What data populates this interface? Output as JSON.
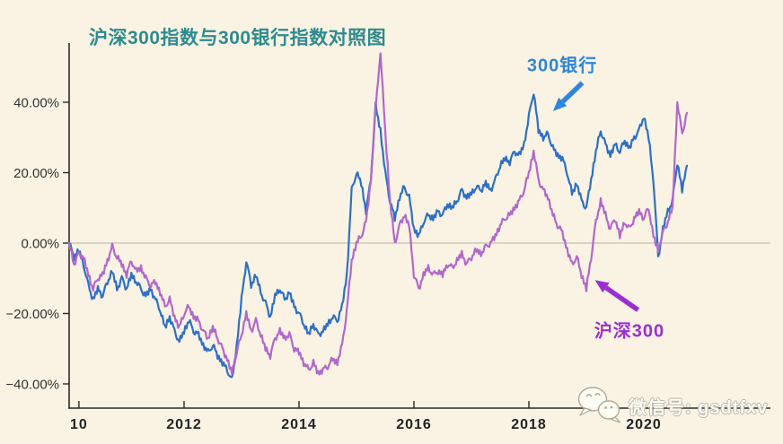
{
  "page": {
    "background": "#faf3e3"
  },
  "chart": {
    "title": "沪深300指数与300银行指数对照图",
    "title_color": "#2e8b8e",
    "annotations": [
      {
        "text": "300银行",
        "color": "#2f86dc",
        "tip": {
          "year": 2018.42,
          "value": 37.5
        },
        "tail": {
          "year": 2018.93,
          "value": 45.5
        },
        "label_at": {
          "year": 2018.58,
          "value": 51
        }
      },
      {
        "text": "沪深300",
        "color": "#9b2fd0",
        "tip": {
          "year": 2019.15,
          "value": -10.5
        },
        "tail": {
          "year": 2019.9,
          "value": -19.0
        },
        "label_at": {
          "year": 2019.75,
          "value": -24.5
        }
      }
    ],
    "watermark": {
      "text": "微信号: gsdtfxv"
    }
  },
  "chart_data": {
    "type": "line",
    "title": "沪深300指数与300银行指数对照图",
    "xlabel": "",
    "ylabel": "",
    "unit": "%",
    "grid": "zero-line-only",
    "legend_position": "inline-annotations",
    "x_start_year": 2010,
    "x_step_months": 1,
    "xlim": [
      2010,
      2020.78
    ],
    "ylim": [
      -44,
      57
    ],
    "x_ticks": [
      {
        "label": "10",
        "year": 2010.17
      },
      {
        "label": "2012",
        "year": 2012
      },
      {
        "label": "2014",
        "year": 2014
      },
      {
        "label": "2016",
        "year": 2016
      },
      {
        "label": "2018",
        "year": 2018
      },
      {
        "label": "2020",
        "year": 2020
      }
    ],
    "y_ticks": [
      {
        "label": "40.00%",
        "value": 40
      },
      {
        "label": "20.00%",
        "value": 20
      },
      {
        "label": "0.00%",
        "value": 0
      },
      {
        "label": "−20.00%",
        "value": -20
      },
      {
        "label": "−40.00%",
        "value": -40
      }
    ],
    "series": [
      {
        "name": "300银行",
        "color": "#2e6fc6",
        "values": [
          0,
          -4,
          -2,
          -6,
          -12,
          -16,
          -13,
          -15,
          -11,
          -8,
          -13,
          -10,
          -13,
          -9,
          -11,
          -13,
          -15,
          -13,
          -16,
          -19,
          -24,
          -21,
          -25,
          -28,
          -25,
          -22,
          -25,
          -26,
          -29,
          -31,
          -29,
          -32,
          -34,
          -36,
          -39,
          -29,
          -16,
          -5,
          -12,
          -9,
          -14,
          -17,
          -21,
          -15,
          -13,
          -16,
          -14,
          -18,
          -20,
          -23,
          -26,
          -23,
          -26,
          -25,
          -23,
          -21,
          -22,
          -18,
          -9,
          15,
          20,
          17,
          9,
          18,
          39,
          32,
          20,
          12,
          7,
          13,
          16,
          13,
          4,
          2,
          6,
          8,
          7,
          9,
          8,
          11,
          10,
          12,
          15,
          13,
          14,
          16,
          15,
          17,
          15,
          18,
          22,
          24,
          23,
          26,
          25,
          28,
          36,
          43,
          32,
          30,
          31,
          27,
          25,
          24,
          20,
          14,
          17,
          12,
          10,
          18,
          26,
          32,
          28,
          25,
          28,
          26,
          29,
          27,
          30,
          32,
          36,
          30,
          18,
          -4,
          4,
          9,
          12,
          23,
          15,
          22
        ]
      },
      {
        "name": "沪深300",
        "color": "#b168ca",
        "values": [
          0,
          -6,
          -3,
          -4,
          -9,
          -13,
          -10,
          -9,
          -5,
          -1,
          -4,
          -6,
          -9,
          -5,
          -8,
          -7,
          -10,
          -12,
          -11,
          -14,
          -18,
          -16,
          -21,
          -24,
          -20,
          -18,
          -21,
          -22,
          -25,
          -27,
          -24,
          -27,
          -30,
          -33,
          -37,
          -31,
          -26,
          -20,
          -25,
          -22,
          -26,
          -30,
          -32,
          -27,
          -25,
          -27,
          -26,
          -30,
          -31,
          -34,
          -36,
          -34,
          -37,
          -36,
          -35,
          -33,
          -34,
          -29,
          -19,
          -5,
          0,
          2,
          6,
          18,
          38,
          54,
          32,
          12,
          0,
          5,
          8,
          5,
          -9,
          -13,
          -9,
          -7,
          -9,
          -8,
          -9,
          -6,
          -7,
          -5,
          -3,
          -6,
          -4,
          -2,
          -3,
          -1,
          0,
          2,
          5,
          7,
          8,
          10,
          12,
          15,
          20,
          26,
          18,
          15,
          13,
          8,
          5,
          3,
          -2,
          -6,
          -4,
          -9,
          -13,
          -4,
          6,
          12,
          8,
          4,
          7,
          2,
          6,
          4,
          7,
          9,
          7,
          10,
          2,
          -2,
          3,
          6,
          10,
          40,
          31,
          37
        ]
      }
    ]
  }
}
